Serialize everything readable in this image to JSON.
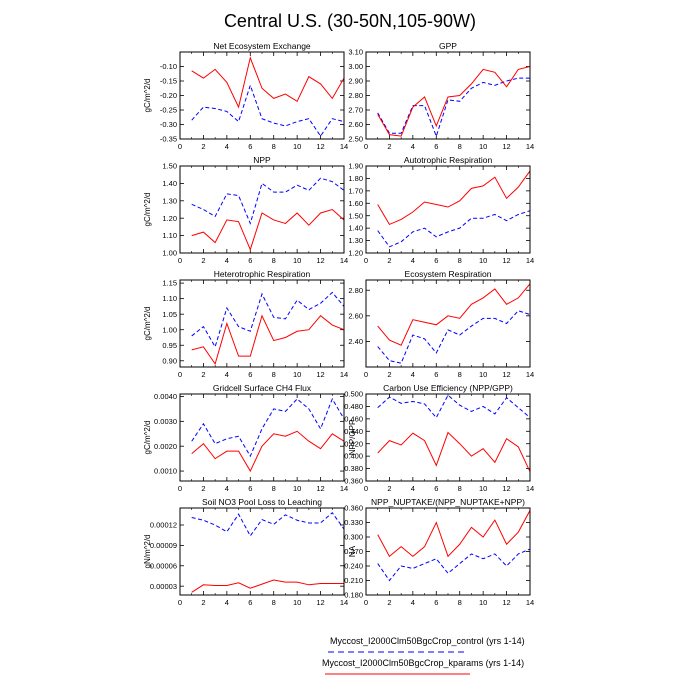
{
  "title": "Central U.S. (30-50N,105-90W)",
  "legend": [
    {
      "label": "Myccost_I2000Clm50BgcCrop_control (yrs 1-14)",
      "color": "#0000ff",
      "dash": true
    },
    {
      "label": "Myccost_I2000Clm50BgcCrop_kparams (yrs 1-14)",
      "color": "#ff0000",
      "dash": false
    }
  ],
  "chart_data": [
    {
      "type": "line",
      "title": "Net Ecosystem Exchange",
      "ylabel": "gC/m^2/d",
      "xlim": [
        0,
        14
      ],
      "ylim": [
        -0.35,
        -0.05
      ],
      "xticks": [
        "0",
        "2",
        "4",
        "6",
        "8",
        "10",
        "12",
        "14"
      ],
      "yticks": [
        "-0.35",
        "-0.30",
        "-0.25",
        "-0.20",
        "-0.15",
        "-0.10"
      ],
      "x": [
        1,
        2,
        3,
        4,
        5,
        6,
        7,
        8,
        9,
        10,
        11,
        12,
        13,
        14
      ],
      "series": [
        {
          "color": "#0000ff",
          "dash": true,
          "values": [
            -0.285,
            -0.24,
            -0.245,
            -0.255,
            -0.29,
            -0.165,
            -0.28,
            -0.295,
            -0.305,
            -0.29,
            -0.28,
            -0.34,
            -0.28,
            -0.29
          ]
        },
        {
          "color": "#ff0000",
          "dash": false,
          "values": [
            -0.115,
            -0.14,
            -0.11,
            -0.155,
            -0.24,
            -0.07,
            -0.175,
            -0.21,
            -0.195,
            -0.22,
            -0.135,
            -0.16,
            -0.21,
            -0.14
          ]
        }
      ]
    },
    {
      "type": "line",
      "title": "GPP",
      "ylabel": "",
      "xlim": [
        0,
        14
      ],
      "ylim": [
        2.5,
        3.1
      ],
      "xticks": [
        "0",
        "2",
        "4",
        "6",
        "8",
        "10",
        "12",
        "14"
      ],
      "yticks": [
        "2.50",
        "2.60",
        "2.70",
        "2.80",
        "2.90",
        "3.00",
        "3.10"
      ],
      "x": [
        1,
        2,
        3,
        4,
        5,
        6,
        7,
        8,
        9,
        10,
        11,
        12,
        13,
        14
      ],
      "series": [
        {
          "color": "#0000ff",
          "dash": true,
          "values": [
            2.68,
            2.54,
            2.54,
            2.73,
            2.73,
            2.52,
            2.77,
            2.76,
            2.85,
            2.89,
            2.87,
            2.9,
            2.92,
            2.92
          ]
        },
        {
          "color": "#ff0000",
          "dash": false,
          "values": [
            2.67,
            2.53,
            2.52,
            2.72,
            2.79,
            2.59,
            2.79,
            2.8,
            2.88,
            2.98,
            2.96,
            2.86,
            2.98,
            3.0
          ]
        }
      ]
    },
    {
      "type": "line",
      "title": "NPP",
      "ylabel": "gC/m^2/d",
      "xlim": [
        0,
        14
      ],
      "ylim": [
        1.0,
        1.5
      ],
      "xticks": [
        "0",
        "2",
        "4",
        "6",
        "8",
        "10",
        "12",
        "14"
      ],
      "yticks": [
        "1.00",
        "1.10",
        "1.20",
        "1.30",
        "1.40",
        "1.50"
      ],
      "x": [
        1,
        2,
        3,
        4,
        5,
        6,
        7,
        8,
        9,
        10,
        11,
        12,
        13,
        14
      ],
      "series": [
        {
          "color": "#0000ff",
          "dash": true,
          "values": [
            1.28,
            1.25,
            1.21,
            1.34,
            1.33,
            1.17,
            1.4,
            1.35,
            1.35,
            1.39,
            1.36,
            1.43,
            1.41,
            1.36
          ]
        },
        {
          "color": "#ff0000",
          "dash": false,
          "values": [
            1.1,
            1.12,
            1.06,
            1.19,
            1.18,
            1.02,
            1.23,
            1.19,
            1.17,
            1.23,
            1.16,
            1.23,
            1.25,
            1.19
          ]
        }
      ]
    },
    {
      "type": "line",
      "title": "Autotrophic Respiration",
      "ylabel": "",
      "xlim": [
        0,
        14
      ],
      "ylim": [
        1.2,
        1.9
      ],
      "xticks": [
        "0",
        "2",
        "4",
        "6",
        "8",
        "10",
        "12",
        "14"
      ],
      "yticks": [
        "1.20",
        "1.30",
        "1.40",
        "1.50",
        "1.60",
        "1.70",
        "1.80",
        "1.90"
      ],
      "x": [
        1,
        2,
        3,
        4,
        5,
        6,
        7,
        8,
        9,
        10,
        11,
        12,
        13,
        14
      ],
      "series": [
        {
          "color": "#0000ff",
          "dash": true,
          "values": [
            1.38,
            1.25,
            1.29,
            1.37,
            1.4,
            1.33,
            1.37,
            1.4,
            1.48,
            1.48,
            1.51,
            1.46,
            1.51,
            1.54
          ]
        },
        {
          "color": "#ff0000",
          "dash": false,
          "values": [
            1.59,
            1.43,
            1.47,
            1.53,
            1.61,
            1.59,
            1.57,
            1.62,
            1.72,
            1.74,
            1.81,
            1.64,
            1.73,
            1.86
          ]
        }
      ]
    },
    {
      "type": "line",
      "title": "Heterotrophic Respiration",
      "ylabel": "gC/m^2/d",
      "xlim": [
        0,
        14
      ],
      "ylim": [
        0.88,
        1.16
      ],
      "xticks": [
        "0",
        "2",
        "4",
        "6",
        "8",
        "10",
        "12",
        "14"
      ],
      "yticks": [
        "0.90",
        "0.95",
        "1.00",
        "1.05",
        "1.10",
        "1.15"
      ],
      "x": [
        1,
        2,
        3,
        4,
        5,
        6,
        7,
        8,
        9,
        10,
        11,
        12,
        13,
        14
      ],
      "series": [
        {
          "color": "#0000ff",
          "dash": true,
          "values": [
            0.98,
            1.01,
            0.945,
            1.07,
            1.01,
            0.995,
            1.115,
            1.04,
            1.035,
            1.095,
            1.065,
            1.085,
            1.12,
            1.075
          ]
        },
        {
          "color": "#ff0000",
          "dash": false,
          "values": [
            0.935,
            0.945,
            0.89,
            1.02,
            0.915,
            0.915,
            1.045,
            0.965,
            0.975,
            0.995,
            1.0,
            1.045,
            1.015,
            1.0
          ]
        }
      ]
    },
    {
      "type": "line",
      "title": "Ecosystem Respiration",
      "ylabel": "",
      "xlim": [
        0,
        14
      ],
      "ylim": [
        2.2,
        2.88
      ],
      "xticks": [
        "0",
        "2",
        "4",
        "6",
        "8",
        "10",
        "12",
        "14"
      ],
      "yticks": [
        "2.40",
        "2.60",
        "2.80"
      ],
      "x": [
        1,
        2,
        3,
        4,
        5,
        6,
        7,
        8,
        9,
        10,
        11,
        12,
        13,
        14
      ],
      "series": [
        {
          "color": "#0000ff",
          "dash": true,
          "values": [
            2.36,
            2.25,
            2.23,
            2.45,
            2.42,
            2.31,
            2.49,
            2.45,
            2.52,
            2.58,
            2.58,
            2.54,
            2.64,
            2.61
          ]
        },
        {
          "color": "#ff0000",
          "dash": false,
          "values": [
            2.52,
            2.41,
            2.37,
            2.57,
            2.55,
            2.53,
            2.6,
            2.58,
            2.69,
            2.74,
            2.81,
            2.69,
            2.74,
            2.85
          ]
        }
      ]
    },
    {
      "type": "line",
      "title": "Gridcell Surface CH4 Flux",
      "ylabel": "gC/m^2/d",
      "xlim": [
        0,
        14
      ],
      "ylim": [
        0.0006,
        0.0041
      ],
      "xticks": [
        "0",
        "2",
        "4",
        "6",
        "8",
        "10",
        "12",
        "14"
      ],
      "yticks": [
        "0.0010",
        "0.0020",
        "0.0030",
        "0.0040"
      ],
      "x": [
        1,
        2,
        3,
        4,
        5,
        6,
        7,
        8,
        9,
        10,
        11,
        12,
        13,
        14
      ],
      "series": [
        {
          "color": "#0000ff",
          "dash": true,
          "values": [
            0.0022,
            0.0029,
            0.0021,
            0.0023,
            0.0024,
            0.0016,
            0.0027,
            0.0035,
            0.0034,
            0.0039,
            0.0035,
            0.0027,
            0.0039,
            0.0031
          ]
        },
        {
          "color": "#ff0000",
          "dash": false,
          "values": [
            0.0017,
            0.0021,
            0.0015,
            0.0018,
            0.0018,
            0.001,
            0.002,
            0.0025,
            0.0024,
            0.0026,
            0.0022,
            0.0019,
            0.0025,
            0.0022
          ]
        }
      ]
    },
    {
      "type": "line",
      "title": "Carbon Use Efficiency (NPP/GPP)",
      "ylabel": "NPP/GPP",
      "xlim": [
        0,
        14
      ],
      "ylim": [
        0.36,
        0.5
      ],
      "xticks": [
        "0",
        "2",
        "4",
        "6",
        "8",
        "10",
        "12",
        "14"
      ],
      "yticks": [
        "0.360",
        "0.380",
        "0.400",
        "0.420",
        "0.440",
        "0.460",
        "0.480",
        "0.500"
      ],
      "x": [
        1,
        2,
        3,
        4,
        5,
        6,
        7,
        8,
        9,
        10,
        11,
        12,
        13,
        14
      ],
      "series": [
        {
          "color": "#0000ff",
          "dash": true,
          "values": [
            0.478,
            0.495,
            0.485,
            0.488,
            0.484,
            0.462,
            0.498,
            0.482,
            0.472,
            0.48,
            0.468,
            0.494,
            0.478,
            0.462
          ]
        },
        {
          "color": "#ff0000",
          "dash": false,
          "values": [
            0.405,
            0.425,
            0.418,
            0.437,
            0.425,
            0.385,
            0.438,
            0.42,
            0.4,
            0.412,
            0.39,
            0.428,
            0.415,
            0.375
          ]
        }
      ]
    },
    {
      "type": "line",
      "title": "Soil NO3 Pool Loss to Leaching",
      "ylabel": "gN/m^2/d",
      "xlim": [
        0,
        14
      ],
      "ylim": [
        1.7e-05,
        0.000145
      ],
      "xticks": [
        "0",
        "2",
        "4",
        "6",
        "8",
        "10",
        "12",
        "14"
      ],
      "yticks": [
        "0.00003",
        "0.00006",
        "0.00009",
        "0.00012"
      ],
      "x": [
        1,
        2,
        3,
        4,
        5,
        6,
        7,
        8,
        9,
        10,
        11,
        12,
        13,
        14
      ],
      "series": [
        {
          "color": "#0000ff",
          "dash": true,
          "values": [
            0.000131,
            0.000127,
            0.00012,
            0.00011,
            0.000136,
            0.000104,
            0.000128,
            0.000121,
            0.000135,
            0.000127,
            0.000123,
            0.000123,
            0.000138,
            0.000114
          ]
        },
        {
          "color": "#ff0000",
          "dash": false,
          "values": [
            2.1e-05,
            3.2e-05,
            3.1e-05,
            3.1e-05,
            3.5e-05,
            2.7e-05,
            3.3e-05,
            3.9e-05,
            3.6e-05,
            3.6e-05,
            3.2e-05,
            3.4e-05,
            3.4e-05,
            3.4e-05
          ]
        }
      ]
    },
    {
      "type": "line",
      "title": "NPP_NUPTAKE/(NPP_NUPTAKE+NPP)",
      "ylabel": "NA",
      "xlim": [
        0,
        14
      ],
      "ylim": [
        0.18,
        0.36
      ],
      "xticks": [
        "0",
        "2",
        "4",
        "6",
        "8",
        "10",
        "12",
        "14"
      ],
      "yticks": [
        "0.180",
        "0.210",
        "0.240",
        "0.270",
        "0.300",
        "0.330",
        "0.360"
      ],
      "x": [
        1,
        2,
        3,
        4,
        5,
        6,
        7,
        8,
        9,
        10,
        11,
        12,
        13,
        14
      ],
      "series": [
        {
          "color": "#0000ff",
          "dash": true,
          "values": [
            0.245,
            0.21,
            0.24,
            0.235,
            0.245,
            0.255,
            0.225,
            0.245,
            0.265,
            0.255,
            0.265,
            0.24,
            0.265,
            0.275
          ]
        },
        {
          "color": "#ff0000",
          "dash": false,
          "values": [
            0.305,
            0.26,
            0.28,
            0.26,
            0.28,
            0.33,
            0.26,
            0.285,
            0.32,
            0.3,
            0.335,
            0.285,
            0.31,
            0.355
          ]
        }
      ]
    }
  ]
}
